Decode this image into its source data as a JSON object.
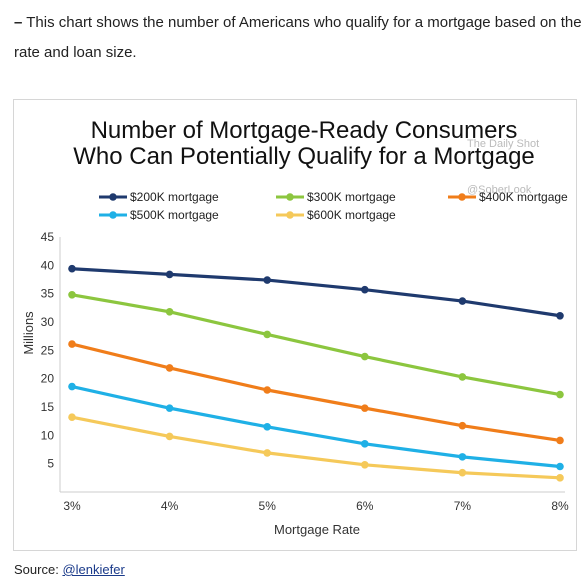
{
  "intro": {
    "dash": "–",
    "text": "This chart shows the number of Americans who qualify for a mortgage based on the rate and loan size."
  },
  "source": {
    "label": "Source:",
    "link": "@lenkiefer"
  },
  "watermark": {
    "line1": "The Daily Shot",
    "line2": "@SoberLook"
  },
  "chart_data": {
    "type": "line",
    "title": "Number of Mortgage-Ready Consumers",
    "subtitle": "Who Can Potentially Qualify for a Mortgage",
    "xlabel": "Mortgage Rate",
    "ylabel": "Millions",
    "categories": [
      "3%",
      "4%",
      "5%",
      "6%",
      "7%",
      "8%"
    ],
    "ylim": [
      0,
      45
    ],
    "yticks": [
      "5",
      "10",
      "15",
      "20",
      "25",
      "30",
      "35",
      "40",
      "45"
    ],
    "ytick_values": [
      5,
      10,
      15,
      20,
      25,
      30,
      35,
      40,
      45
    ],
    "grid": false,
    "legend_position": "top",
    "series": [
      {
        "name": "$200K mortgage",
        "color": "#1f3a6e",
        "values": [
          39.4,
          38.4,
          37.4,
          35.7,
          33.7,
          31.1
        ]
      },
      {
        "name": "$300K mortgage",
        "color": "#8cc63f",
        "values": [
          34.8,
          31.8,
          27.8,
          23.9,
          20.3,
          17.2
        ]
      },
      {
        "name": "$400K mortgage",
        "color": "#f07d1a",
        "values": [
          26.1,
          21.9,
          18.0,
          14.8,
          11.7,
          9.1
        ]
      },
      {
        "name": "$500K mortgage",
        "color": "#1fb0e6",
        "values": [
          18.6,
          14.8,
          11.5,
          8.5,
          6.2,
          4.5
        ]
      },
      {
        "name": "$600K mortgage",
        "color": "#f5c95a",
        "values": [
          13.2,
          9.8,
          6.9,
          4.8,
          3.4,
          2.5
        ]
      }
    ]
  }
}
